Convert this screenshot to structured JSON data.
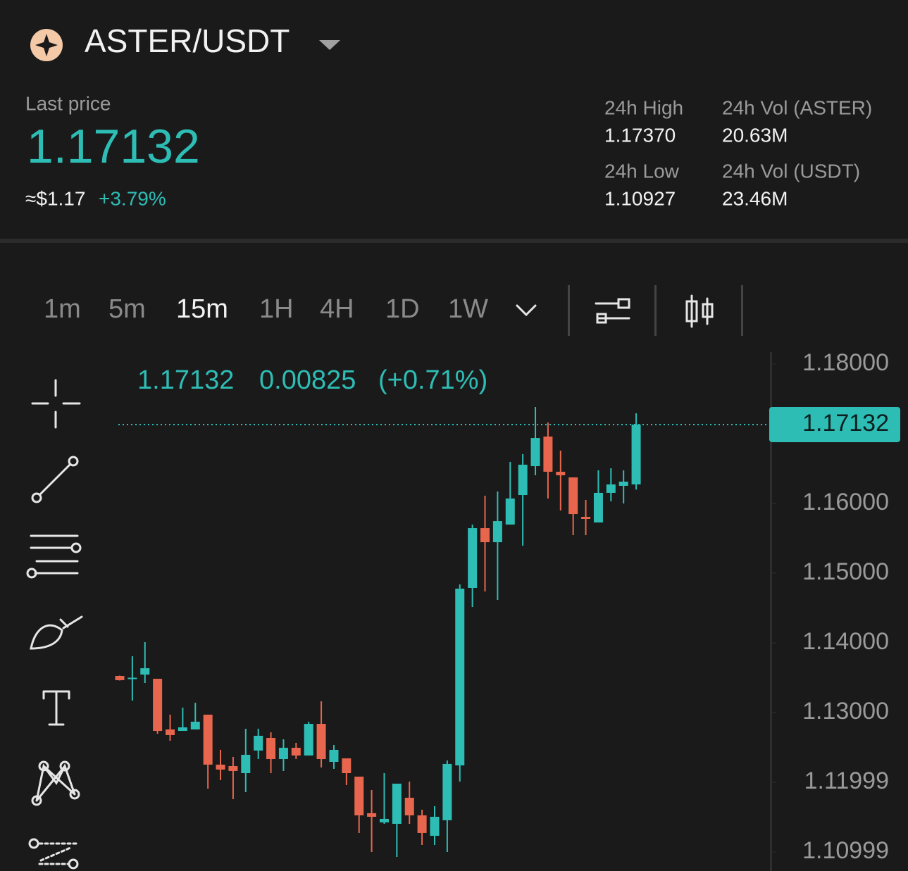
{
  "header": {
    "pair": "ASTER/USDT",
    "last_price_label": "Last price",
    "last_price": "1.17132",
    "usd_price": "≈$1.17",
    "change": "+3.79%"
  },
  "stats": [
    {
      "label": "24h High",
      "value": "1.17370"
    },
    {
      "label": "24h Vol (ASTER)",
      "value": "20.63M"
    },
    {
      "label": "24h Low",
      "value": "1.10927"
    },
    {
      "label": "24h Vol (USDT)",
      "value": "23.46M"
    }
  ],
  "toolbar": {
    "intervals": [
      "1m",
      "5m",
      "15m",
      "1H",
      "4H",
      "1D",
      "1W"
    ],
    "active": 2
  },
  "legend": {
    "close": "1.17132",
    "change": "0.00825",
    "change_pct": "(+0.71%)"
  },
  "chart_data": {
    "type": "candlestick",
    "up_color": "#2ebdb5",
    "down_color": "#e8664d",
    "open": [
      1.13525,
      1.1348,
      1.13545,
      1.13485,
      1.12758,
      1.12737,
      1.12758,
      1.1297,
      1.12253,
      1.12232,
      1.12131,
      1.12455,
      1.12636,
      1.12333,
      1.12495,
      1.12384,
      1.12838,
      1.12293,
      1.12343,
      1.12081,
      1.11556,
      1.11424,
      1.11404,
      1.11778,
      1.11525,
      1.11232,
      1.11455,
      1.12242,
      1.14788,
      1.15646,
      1.15444,
      1.15697,
      1.16121,
      1.16535,
      1.1696,
      1.16455,
      1.16374,
      1.15808,
      1.15727,
      1.16152,
      1.16253,
      1.16273
    ],
    "high": [
      1.1353,
      1.13808,
      1.1401,
      1.13485,
      1.1297,
      1.13071,
      1.13141,
      1.1297,
      1.12465,
      1.12364,
      1.12768,
      1.12768,
      1.12717,
      1.12616,
      1.12566,
      1.12869,
      1.13162,
      1.12535,
      1.12343,
      1.12081,
      1.11889,
      1.12131,
      1.1198,
      1.1201,
      1.11606,
      1.11657,
      1.12313,
      1.14838,
      1.15697,
      1.16111,
      1.16172,
      1.16596,
      1.16707,
      1.17384,
      1.17162,
      1.16758,
      1.16374,
      1.16051,
      1.16475,
      1.16505,
      1.16475,
      1.17293
    ],
    "low": [
      1.1346,
      1.13172,
      1.13424,
      1.12697,
      1.12596,
      1.12737,
      1.12758,
      1.11909,
      1.1203,
      1.11758,
      1.11859,
      1.12333,
      1.12131,
      1.12162,
      1.12333,
      1.12384,
      1.12212,
      1.12192,
      1.1196,
      1.11273,
      1.11,
      1.11404,
      1.10929,
      1.11404,
      1.11101,
      1.11101,
      1.11,
      1.1201,
      1.14515,
      1.14737,
      1.14616,
      1.15697,
      1.15394,
      1.16404,
      1.16071,
      1.15899,
      1.15545,
      1.15545,
      1.15727,
      1.1603,
      1.16,
      1.162
    ],
    "close": [
      1.13465,
      1.135,
      1.13636,
      1.12737,
      1.12677,
      1.12788,
      1.12869,
      1.12253,
      1.12182,
      1.12162,
      1.12394,
      1.12667,
      1.12333,
      1.12495,
      1.12384,
      1.12838,
      1.12333,
      1.12465,
      1.12131,
      1.11525,
      1.11505,
      1.11475,
      1.1198,
      1.11525,
      1.11273,
      1.11505,
      1.12263,
      1.14778,
      1.15646,
      1.15444,
      1.15747,
      1.16071,
      1.16556,
      1.16939,
      1.16455,
      1.16404,
      1.15848,
      1.15778,
      1.16152,
      1.16273,
      1.16313,
      1.17132
    ],
    "last_price": 1.17132,
    "ylim": [
      1.10727,
      1.18172
    ],
    "yticks": [
      {
        "value": 1.18,
        "label": "1.18000"
      },
      {
        "value": 1.16,
        "label": "1.16000"
      },
      {
        "value": 1.15,
        "label": "1.15000"
      },
      {
        "value": 1.14,
        "label": "1.14000"
      },
      {
        "value": 1.13,
        "label": "1.13000"
      },
      {
        "value": 1.11999,
        "label": "1.11999"
      },
      {
        "value": 1.10999,
        "label": "1.10999"
      }
    ]
  }
}
